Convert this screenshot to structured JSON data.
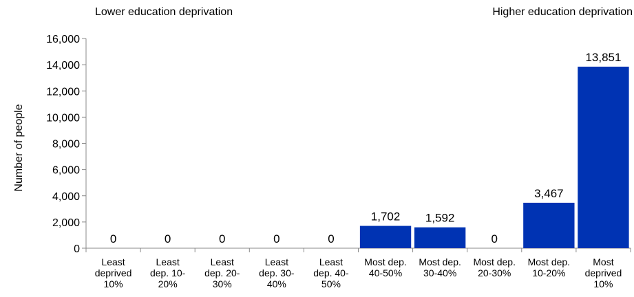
{
  "chart_data": {
    "type": "bar",
    "annotations": {
      "left": "Lower education deprivation",
      "right": "Higher education deprivation"
    },
    "ylabel": "Number of people",
    "xlabel": "",
    "ylim": [
      0,
      16000
    ],
    "yticks": [
      "0",
      "2,000",
      "4,000",
      "6,000",
      "8,000",
      "10,000",
      "12,000",
      "14,000",
      "16,000"
    ],
    "categories": [
      [
        "Least",
        "deprived",
        "10%"
      ],
      [
        "Least",
        "dep. 10-",
        "20%"
      ],
      [
        "Least",
        "dep. 20-",
        "30%"
      ],
      [
        "Least",
        "dep. 30-",
        "40%"
      ],
      [
        "Least",
        "dep. 40-",
        "50%"
      ],
      [
        "Most dep.",
        "40-50%"
      ],
      [
        "Most dep.",
        "30-40%"
      ],
      [
        "Most dep.",
        "20-30%"
      ],
      [
        "Most dep.",
        "10-20%"
      ],
      [
        "Most",
        "deprived",
        "10%"
      ]
    ],
    "values": [
      0,
      0,
      0,
      0,
      0,
      1702,
      1592,
      0,
      3467,
      13851
    ],
    "value_labels": [
      "0",
      "0",
      "0",
      "0",
      "0",
      "1,702",
      "1,592",
      "0",
      "3,467",
      "13,851"
    ],
    "bar_color": "#0033b3",
    "grid": false
  }
}
